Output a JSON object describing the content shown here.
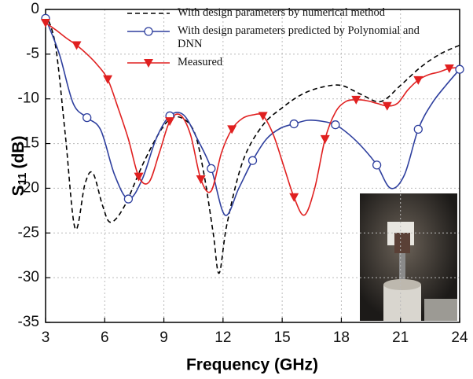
{
  "chart_data": {
    "type": "line",
    "xlabel": "Frequency (GHz)",
    "ylabel": "S",
    "ylabel_subscript": "11",
    "ylabel_unit": "(dB)",
    "xlim": [
      3,
      24
    ],
    "ylim": [
      -35,
      0
    ],
    "xticks": [
      3,
      6,
      9,
      12,
      15,
      18,
      21,
      24
    ],
    "yticks": [
      0,
      -5,
      -10,
      -15,
      -20,
      -25,
      -30,
      -35
    ],
    "grid": true,
    "legend": "upper center",
    "series": [
      {
        "name": "With design parameters by numerical method",
        "color": "#000000",
        "dashed": true,
        "x": [
          3,
          3.5,
          4,
          4.5,
          5,
          5.4,
          5.9,
          6.3,
          7,
          8,
          9,
          9.7,
          10.5,
          11,
          11.5,
          11.8,
          12.2,
          13,
          14,
          15,
          16,
          17,
          18,
          19,
          20,
          21,
          22,
          23,
          24
        ],
        "values": [
          -0.5,
          -4,
          -14,
          -24.5,
          -19.5,
          -18.3,
          -22,
          -23.8,
          -22,
          -17,
          -13,
          -12,
          -13.5,
          -18,
          -25,
          -29.5,
          -24,
          -17,
          -13,
          -11,
          -9.5,
          -8.7,
          -8.5,
          -9.5,
          -10.3,
          -8.5,
          -6.5,
          -5,
          -4
        ]
      },
      {
        "name": "With design parameters predicted by Polynomial and DNN",
        "color": "#2e3f9e",
        "marker": "circle",
        "marker_every": 3,
        "x": [
          3,
          3.7,
          4.4,
          5.1,
          5.8,
          6.5,
          7.2,
          7.9,
          8.6,
          9.3,
          10,
          10.7,
          11.4,
          12.1,
          12.8,
          13.5,
          14.2,
          14.9,
          15.6,
          16.3,
          17,
          17.7,
          18.4,
          19.1,
          19.8,
          20.5,
          21.2,
          21.9,
          22.6,
          23.3,
          24
        ],
        "values": [
          -1,
          -5,
          -10.5,
          -12.1,
          -13.5,
          -18.5,
          -21.2,
          -19,
          -14.5,
          -11.9,
          -11.8,
          -14.5,
          -17.8,
          -23,
          -20,
          -16.9,
          -14.5,
          -13.3,
          -12.8,
          -12.4,
          -12.5,
          -12.9,
          -14,
          -15.5,
          -17.4,
          -20,
          -18.5,
          -13.4,
          -10.5,
          -8.5,
          -6.7
        ]
      },
      {
        "name": "Measured",
        "color": "#e02020",
        "marker": "triangle-down",
        "marker_every": 3,
        "x": [
          3,
          3.525,
          4.05,
          4.575,
          5.1,
          5.625,
          6.15,
          6.675,
          7.2,
          7.725,
          8.25,
          8.775,
          9.3,
          9.825,
          10.35,
          10.875,
          11.4,
          11.925,
          12.45,
          12.975,
          13.5,
          14.025,
          14.55,
          15.075,
          15.6,
          16.125,
          16.65,
          17.175,
          17.7,
          18.225,
          18.75,
          19.275,
          19.8,
          20.325,
          20.85,
          21.375,
          21.9,
          22.425,
          22.95,
          23.475,
          24
        ],
        "values": [
          -1.5,
          -2.3,
          -3.2,
          -4,
          -5,
          -6.2,
          -7.8,
          -11,
          -14.5,
          -18.7,
          -19.3,
          -16,
          -12.5,
          -11.8,
          -14,
          -19,
          -20.3,
          -16,
          -13.4,
          -12.2,
          -11.8,
          -11.9,
          -14,
          -17.5,
          -21,
          -23,
          -20,
          -14.5,
          -11.5,
          -10.3,
          -10.1,
          -10.2,
          -10.5,
          -10.8,
          -10.5,
          -9,
          -7.9,
          -7.3,
          -7,
          -6.6,
          -6.5
        ]
      }
    ]
  }
}
